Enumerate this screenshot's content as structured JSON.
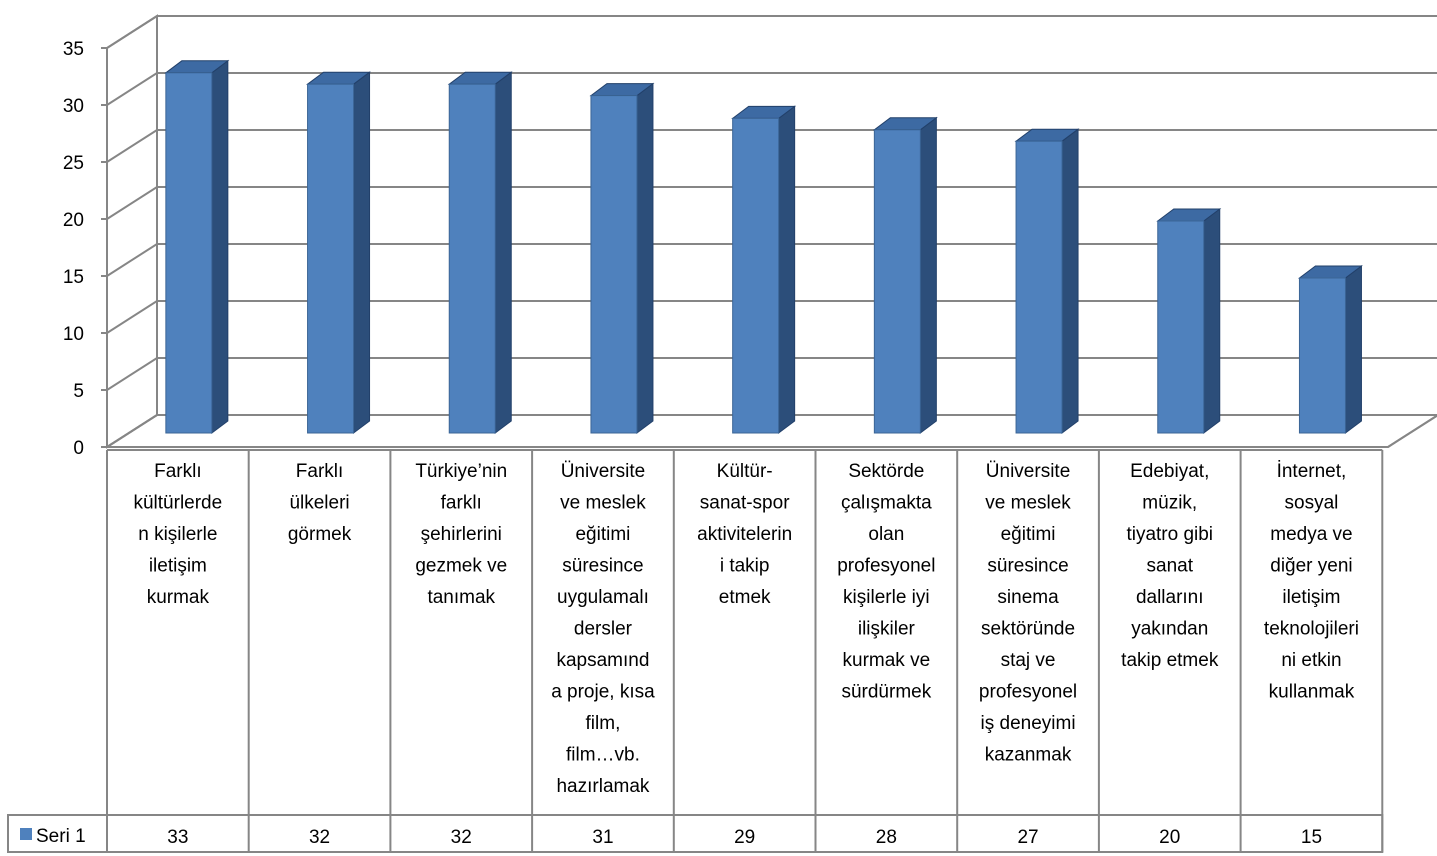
{
  "chart_data": {
    "type": "bar",
    "style": "3d-column-with-data-table",
    "categories": [
      [
        "Farklı",
        "kültürlerde",
        "n kişilerle",
        "iletişim",
        "kurmak"
      ],
      [
        "Farklı",
        "ülkeleri",
        "görmek"
      ],
      [
        "Türkiye’nin",
        "farklı",
        "şehirlerini",
        "gezmek ve",
        "tanımak"
      ],
      [
        "Üniversite",
        "ve meslek",
        "eğitimi",
        "süresince",
        "uygulamalı",
        "dersler",
        "kapsamınd",
        "a proje, kısa",
        "film,",
        "film…vb.",
        "hazırlamak"
      ],
      [
        "Kültür-",
        "sanat-spor",
        "aktivitelerin",
        "i takip",
        "etmek"
      ],
      [
        "Sektörde",
        "çalışmakta",
        "olan",
        "profesyonel",
        "kişilerle iyi",
        "ilişkiler",
        "kurmak ve",
        "sürdürmek"
      ],
      [
        "Üniversite",
        "ve meslek",
        "eğitimi",
        "süresince",
        "sinema",
        "sektöründe",
        "staj ve",
        "profesyonel",
        "iş deneyimi",
        "kazanmak"
      ],
      [
        "Edebiyat,",
        "müzik,",
        "tiyatro gibi",
        "sanat",
        "dallarını",
        "yakından",
        "takip etmek"
      ],
      [
        "İnternet,",
        "sosyal",
        "medya ve",
        "diğer yeni",
        "iletişim",
        "teknolojileri",
        "ni etkin",
        "kullanmak"
      ]
    ],
    "series": [
      {
        "name": "Seri 1",
        "values": [
          33,
          32,
          32,
          31,
          29,
          28,
          27,
          20,
          15
        ]
      }
    ],
    "yticks": [
      "0",
      "5",
      "10",
      "15",
      "20",
      "25",
      "30",
      "35"
    ],
    "ylim": [
      0,
      35
    ],
    "grid": true,
    "legend": "data-table-left",
    "colors": {
      "bar_front": "#4f81bd",
      "bar_side": "#2c4e7a",
      "bar_top": "#3d6aa3",
      "grid": "#868686",
      "legend_key": "#4f81bd"
    }
  }
}
